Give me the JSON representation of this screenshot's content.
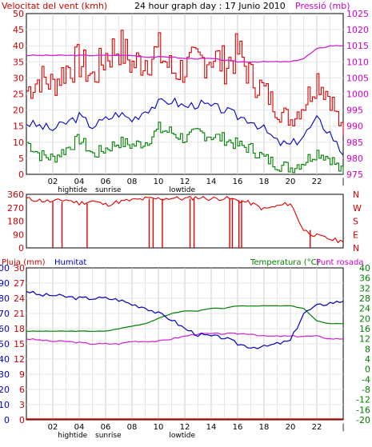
{
  "header": {
    "wind_title": "Velocitat del vent (kmh)",
    "graph_title": "24 hour graph day : 17 Junio 2010",
    "pressure_title": "Pressió (mb)",
    "rain_label": "Pluja (mm)",
    "humidity_label": "Humitat",
    "temp_label": "Temperatura (°C)",
    "dew_label": "Punt rosada"
  },
  "colors": {
    "wind": "#e00000",
    "gust_avg": "#0000c0",
    "speed_green": "#008000",
    "pressure": "#d020d0",
    "humidity": "#0000c0",
    "temperature": "#008000",
    "dew": "#d020d0",
    "rain": "#e00000",
    "grid": "#cccccc",
    "text_red": "#cc0000",
    "text_blue": "#0000cc",
    "text_green": "#008000",
    "text_magenta": "#cc00cc"
  },
  "chart_data": [
    {
      "type": "line",
      "name": "wind-speed-pressure",
      "title": "24 hour graph day : 17 Junio 2010",
      "ylabel_left": "Velocitat del vent (kmh)",
      "ylabel_right": "Pressió (mb)",
      "ylim_left": [
        0,
        50
      ],
      "ylim_right": [
        975,
        1025
      ],
      "y_ticks_left": [
        "0",
        "5",
        "10",
        "15",
        "20",
        "25",
        "30",
        "35",
        "40",
        "45",
        "50"
      ],
      "y_ticks_right": [
        "975",
        "980",
        "985",
        "990",
        "995",
        "1000",
        "1005",
        "1010",
        "1015",
        "1020",
        "1025"
      ],
      "x_ticks": [
        "02",
        "04",
        "06",
        "08",
        "10",
        "12",
        "14",
        "16",
        "18",
        "20",
        "22"
      ],
      "x_annotations": {
        "hightide": "hightide",
        "sunrise": "sunrise",
        "lowtide": "lowtide"
      },
      "x_hours": [
        0,
        1,
        2,
        3,
        4,
        5,
        6,
        7,
        8,
        9,
        10,
        11,
        12,
        13,
        14,
        15,
        16,
        17,
        18,
        19,
        20,
        21,
        22,
        23,
        24
      ],
      "series": [
        {
          "key": "gust",
          "values": [
            26,
            30,
            28,
            33,
            35,
            30,
            37,
            40,
            34,
            36,
            38,
            32,
            33,
            35,
            37,
            34,
            38,
            30,
            26,
            20,
            17,
            22,
            30,
            24,
            12
          ]
        },
        {
          "key": "avg",
          "values": [
            16,
            15,
            14,
            16,
            18,
            15,
            17,
            19,
            17,
            20,
            22,
            23,
            21,
            22,
            21,
            20,
            18,
            17,
            14,
            10,
            9,
            12,
            17,
            13,
            6
          ]
        },
        {
          "key": "min",
          "values": [
            10,
            6,
            5,
            8,
            11,
            6,
            8,
            10,
            9,
            10,
            14,
            13,
            11,
            13,
            12,
            11,
            9,
            8,
            5,
            3,
            2,
            4,
            7,
            5,
            0
          ]
        },
        {
          "key": "pressure",
          "values": [
            1012,
            1012,
            1012,
            1012,
            1012,
            1012,
            1012,
            1012,
            1012,
            1011.5,
            1011.5,
            1011.5,
            1011,
            1011,
            1011,
            1010.5,
            1010,
            1010,
            1010,
            1010,
            1010,
            1011,
            1014,
            1015,
            1015
          ]
        }
      ]
    },
    {
      "type": "line",
      "name": "wind-direction",
      "ylim": [
        0,
        360
      ],
      "y_ticks_left": [
        "0",
        "90",
        "180",
        "270",
        "360"
      ],
      "y_ticks_right": [
        "N",
        "E",
        "S",
        "W",
        "N"
      ],
      "x_hours": [
        0,
        1,
        2,
        3,
        4,
        5,
        6,
        7,
        8,
        9,
        10,
        11,
        12,
        13,
        14,
        15,
        16,
        17,
        18,
        19,
        20,
        21,
        22,
        23,
        24
      ],
      "series": [
        {
          "key": "direction",
          "values": [
            330,
            320,
            310,
            325,
            300,
            315,
            290,
            310,
            320,
            330,
            330,
            335,
            330,
            340,
            330,
            335,
            320,
            300,
            260,
            280,
            300,
            120,
            80,
            60,
            40
          ]
        }
      ]
    },
    {
      "type": "line",
      "name": "rain-humidity-temperature",
      "ylabel_left": "Pluja (mm)",
      "ylabel_left2": "Humitat",
      "ylabel_right": "Temperatura (°C)",
      "ylabel_right2": "Punt rosada",
      "ylim_humidity": [
        0,
        100
      ],
      "ylim_rain": [
        0,
        30
      ],
      "ylim_temp": [
        -20,
        40
      ],
      "y_ticks_humidity": [
        "0",
        "10",
        "20",
        "30",
        "40",
        "50",
        "60",
        "70",
        "80",
        "90",
        "100"
      ],
      "y_ticks_rain": [
        "0",
        "3",
        "6",
        "9",
        "12",
        "15",
        "18",
        "21",
        "24",
        "27",
        "30"
      ],
      "y_ticks_temp": [
        "-20",
        "-16",
        "-12",
        "-8",
        "-4",
        "0",
        "4",
        "8",
        "12",
        "16",
        "20",
        "24",
        "28",
        "32",
        "36",
        "40"
      ],
      "x_ticks": [
        "02",
        "04",
        "06",
        "08",
        "10",
        "12",
        "14",
        "16",
        "18",
        "20",
        "22"
      ],
      "x_annotations": {
        "hightide": "hightide",
        "sunrise": "sunrise",
        "lowtide": "lowtide"
      },
      "x_hours": [
        0,
        1,
        2,
        3,
        4,
        5,
        6,
        7,
        8,
        9,
        10,
        11,
        12,
        13,
        14,
        15,
        16,
        17,
        18,
        19,
        20,
        21,
        22,
        23,
        24
      ],
      "series": [
        {
          "key": "humidity",
          "values": [
            85,
            82,
            82,
            81,
            80,
            80,
            80,
            79,
            76,
            74,
            70,
            66,
            60,
            56,
            55,
            54,
            50,
            48,
            48,
            50,
            52,
            70,
            75,
            77,
            78
          ]
        },
        {
          "key": "temperature",
          "values": [
            15,
            15,
            15,
            15,
            15,
            15,
            15,
            16,
            17,
            18,
            20,
            22,
            23,
            23,
            24,
            24,
            25,
            25,
            25,
            25,
            25,
            24,
            19,
            18,
            18
          ]
        },
        {
          "key": "dew",
          "values": [
            12,
            11.5,
            11,
            11,
            10.5,
            10,
            10,
            10,
            11,
            11,
            11,
            12,
            13,
            14,
            14,
            14,
            14,
            14,
            13,
            13,
            13,
            13,
            13,
            12,
            12
          ]
        },
        {
          "key": "rain",
          "values": [
            0,
            0,
            0,
            0,
            0,
            0,
            0,
            0,
            0,
            0,
            0,
            0,
            0,
            0,
            0,
            0,
            0,
            0,
            0,
            0,
            0,
            0,
            0,
            0,
            0
          ]
        }
      ]
    }
  ]
}
